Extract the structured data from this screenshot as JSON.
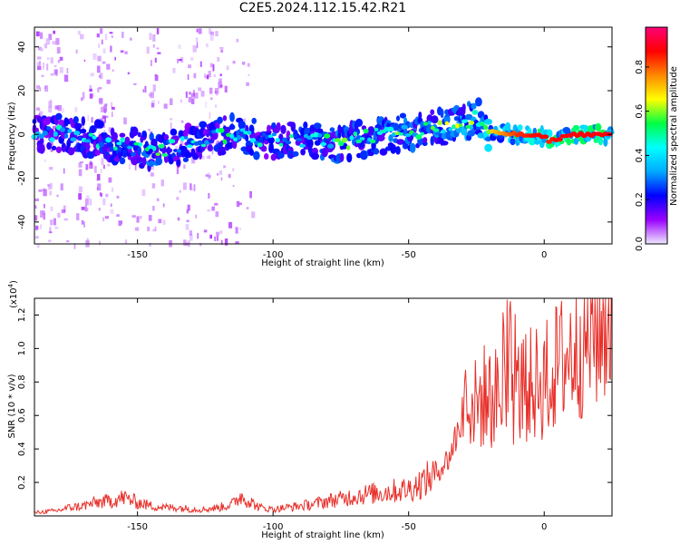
{
  "title": "C2E5.2024.112.15.42.R21",
  "colors": {
    "snr_line": "#e8302a",
    "axis": "#000000",
    "ridge_background_low": "#8000ff"
  },
  "chart_data": [
    {
      "type": "heatmap",
      "name": "spectrogram",
      "xlabel": "Height of straight line (km)",
      "ylabel": "Frequency (Hz)",
      "xlim": [
        -188,
        25
      ],
      "ylim": [
        -50,
        49
      ],
      "xticks": [
        -150,
        -100,
        -50,
        0
      ],
      "yticks": [
        -40,
        -20,
        0,
        20,
        40
      ],
      "grid": false,
      "colorbar": {
        "label": "Normalized spectral amplitude",
        "range": [
          0.0,
          0.98
        ],
        "ticks": [
          0.0,
          0.2,
          0.4,
          0.6,
          0.8
        ],
        "colormap": [
          "#f0e8ff",
          "#9a00ff",
          "#0000ff",
          "#00aaff",
          "#00ffff",
          "#00ff44",
          "#ffff00",
          "#ff8800",
          "#ff0000",
          "#ff0077"
        ]
      },
      "ridge": {
        "x": [
          -188,
          -175,
          -165,
          -155,
          -145,
          -135,
          -125,
          -115,
          -105,
          -95,
          -85,
          -75,
          -65,
          -55,
          -45,
          -35,
          -28,
          -25,
          -20,
          -10,
          0,
          2,
          5,
          10,
          20,
          25
        ],
        "frequency_hz": [
          1,
          0,
          -3,
          -5,
          -8,
          -5,
          -2,
          0,
          -2,
          -3,
          -3,
          -4,
          -1,
          0,
          2,
          4,
          6,
          8,
          1,
          0,
          -1,
          -3,
          -2,
          0,
          0,
          0
        ],
        "amplitude": [
          0.35,
          0.4,
          0.4,
          0.4,
          0.5,
          0.4,
          0.4,
          0.45,
          0.4,
          0.4,
          0.45,
          0.5,
          0.45,
          0.5,
          0.5,
          0.55,
          0.6,
          0.55,
          0.7,
          0.85,
          0.9,
          0.85,
          0.9,
          0.9,
          0.9,
          0.9
        ]
      }
    },
    {
      "type": "line",
      "name": "snr",
      "xlabel": "Height of straight line (km)",
      "ylabel": "SNR (10 * v/v)",
      "y_multiplier_label": "(x10",
      "y_multiplier_exponent": "4",
      "xlim": [
        -188,
        25
      ],
      "ylim": [
        0,
        1.3
      ],
      "xticks": [
        -150,
        -100,
        -50,
        0
      ],
      "yticks": [
        0.2,
        0.4,
        0.6,
        0.8,
        1.0,
        1.2
      ],
      "grid": false,
      "series": [
        {
          "x": [
            -188,
            -180,
            -175,
            -170,
            -165,
            -160,
            -155,
            -150,
            -145,
            -140,
            -135,
            -130,
            -125,
            -120,
            -115,
            -112,
            -110,
            -105,
            -100,
            -95,
            -90,
            -85,
            -80,
            -75,
            -70,
            -65,
            -60,
            -55,
            -50,
            -45,
            -40,
            -35,
            -32,
            -30,
            -28,
            -25,
            -22,
            -20,
            -15,
            -10,
            -5,
            0,
            5,
            10,
            15,
            20,
            25
          ],
          "values": [
            0.02,
            0.03,
            0.05,
            0.06,
            0.08,
            0.09,
            0.11,
            0.08,
            0.06,
            0.05,
            0.05,
            0.04,
            0.04,
            0.05,
            0.07,
            0.12,
            0.1,
            0.05,
            0.04,
            0.05,
            0.06,
            0.07,
            0.09,
            0.1,
            0.12,
            0.13,
            0.14,
            0.15,
            0.16,
            0.2,
            0.25,
            0.35,
            0.5,
            0.62,
            0.7,
            0.65,
            0.72,
            0.7,
            0.72,
            0.74,
            0.78,
            0.8,
            0.9,
            0.98,
            1.05,
            1.12,
            1.2
          ]
        }
      ]
    }
  ]
}
